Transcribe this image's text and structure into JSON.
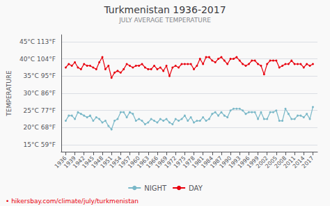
{
  "chart_data": {
    "type": "line",
    "title": "Turkmenistan 1936-2017",
    "subtitle": "JULY AVERAGE TEMPERATURE",
    "ylabel": "TEMPERATURE",
    "annotation": "• hikersbay.com/climate/july/turkmenistan",
    "x": [
      1936,
      1937,
      1938,
      1939,
      1940,
      1941,
      1942,
      1943,
      1944,
      1945,
      1946,
      1947,
      1948,
      1949,
      1950,
      1951,
      1952,
      1953,
      1954,
      1955,
      1956,
      1957,
      1958,
      1959,
      1960,
      1961,
      1962,
      1963,
      1964,
      1965,
      1966,
      1967,
      1968,
      1969,
      1970,
      1971,
      1972,
      1973,
      1974,
      1975,
      1976,
      1977,
      1978,
      1979,
      1980,
      1981,
      1982,
      1983,
      1984,
      1985,
      1986,
      1987,
      1988,
      1989,
      1990,
      1991,
      1992,
      1993,
      1994,
      1995,
      1996,
      1997,
      1998,
      1999,
      2000,
      2001,
      2002,
      2003,
      2004,
      2005,
      2006,
      2007,
      2008,
      2009,
      2010,
      2011,
      2012,
      2013,
      2014,
      2015,
      2016,
      2017
    ],
    "series": [
      {
        "name": "NIGHT",
        "color": "#7ab8c8",
        "marker": "circle",
        "values": [
          22.0,
          23.5,
          23.5,
          22.5,
          24.5,
          24.0,
          23.5,
          23.0,
          23.5,
          22.0,
          23.0,
          22.5,
          21.5,
          22.0,
          20.5,
          19.5,
          22.0,
          22.5,
          24.5,
          24.5,
          23.0,
          24.5,
          24.0,
          22.0,
          22.5,
          22.0,
          21.0,
          21.5,
          22.5,
          22.0,
          21.5,
          22.5,
          22.0,
          22.5,
          21.5,
          21.0,
          22.5,
          22.0,
          22.5,
          23.5,
          22.0,
          23.0,
          21.5,
          22.0,
          22.0,
          23.0,
          22.0,
          22.5,
          24.0,
          24.5,
          23.5,
          24.5,
          23.5,
          23.0,
          25.0,
          25.5,
          25.5,
          25.5,
          25.0,
          24.0,
          24.5,
          24.5,
          24.5,
          22.5,
          24.5,
          22.5,
          22.5,
          24.5,
          24.5,
          25.0,
          22.0,
          22.0,
          25.5,
          24.0,
          22.5,
          22.5,
          23.5,
          23.5,
          23.0,
          24.0,
          22.5,
          26.0
        ]
      },
      {
        "name": "DAY",
        "color": "#e8000d",
        "marker": "circle",
        "values": [
          37.5,
          38.5,
          38.0,
          39.0,
          37.5,
          37.0,
          38.5,
          38.0,
          38.0,
          37.5,
          37.0,
          39.0,
          40.5,
          37.0,
          38.0,
          34.5,
          36.0,
          36.5,
          36.0,
          37.0,
          38.5,
          38.0,
          37.5,
          38.0,
          38.0,
          38.5,
          37.5,
          37.0,
          37.0,
          38.0,
          37.0,
          37.5,
          36.5,
          38.0,
          35.0,
          37.5,
          38.0,
          37.5,
          38.5,
          38.5,
          38.5,
          38.5,
          37.0,
          38.0,
          40.0,
          38.5,
          40.5,
          40.5,
          39.5,
          39.0,
          40.0,
          40.5,
          39.5,
          38.5,
          40.0,
          40.0,
          40.5,
          39.5,
          38.5,
          38.0,
          38.5,
          39.5,
          39.5,
          38.5,
          38.0,
          35.5,
          38.5,
          39.5,
          39.5,
          39.5,
          37.5,
          38.0,
          38.5,
          38.5,
          39.5,
          38.5,
          38.5,
          38.5,
          37.5,
          38.5,
          38.0,
          38.5
        ]
      }
    ],
    "xlim": [
      1934.5,
      2018.5
    ],
    "xticks": [
      1936,
      1939,
      1942,
      1945,
      1948,
      1951,
      1954,
      1957,
      1960,
      1963,
      1966,
      1969,
      1972,
      1975,
      1978,
      1981,
      1984,
      1987,
      1990,
      1993,
      1996,
      1999,
      2002,
      2005,
      2008,
      2011,
      2014,
      2017
    ],
    "ylim": [
      13,
      47
    ],
    "yticks": [
      {
        "value": 15,
        "label": "15°C 59°F"
      },
      {
        "value": 20,
        "label": "20°C 68°F"
      },
      {
        "value": 25,
        "label": "25°C 77°F"
      },
      {
        "value": 30,
        "label": "30°C 86°F"
      },
      {
        "value": 35,
        "label": "35°C 95°F"
      },
      {
        "value": 40,
        "label": "40°C 104°F"
      },
      {
        "value": 45,
        "label": "45°C 113°F"
      }
    ],
    "grid": true,
    "legend": "bottom"
  }
}
